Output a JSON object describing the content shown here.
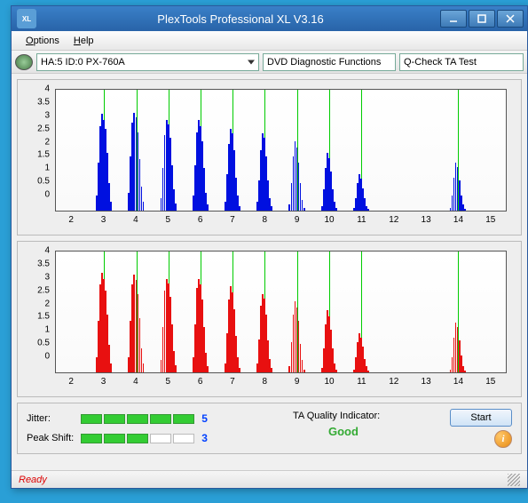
{
  "window": {
    "title": "PlexTools Professional XL V3.16",
    "icon_label": "XL"
  },
  "menu": {
    "options": "Options",
    "help": "Help"
  },
  "toolbar": {
    "drive": "HA:5 ID:0   PX-760A",
    "func": "DVD Diagnostic Functions",
    "test": "Q-Check TA Test"
  },
  "chart": {
    "ymax": 4,
    "ytick_step": 0.5,
    "yticks": [
      0,
      0.5,
      1,
      1.5,
      2,
      2.5,
      3,
      3.5,
      4
    ],
    "xmin": 1.5,
    "xmax": 15.5,
    "xticks": [
      2,
      3,
      4,
      5,
      6,
      7,
      8,
      9,
      10,
      11,
      12,
      13,
      14,
      15
    ],
    "vlines": [
      3,
      4,
      5,
      6,
      7,
      8,
      9,
      10,
      11,
      14
    ],
    "grid_color": "#e8e8e8",
    "vline_color": "#00cc00",
    "bar_width_rel": 0.056,
    "top": {
      "color": "#0010e0",
      "groups": [
        {
          "c": 3,
          "h": [
            0.5,
            1.6,
            2.8,
            3.2,
            3.0,
            2.7,
            1.9,
            0.9,
            0.3
          ]
        },
        {
          "c": 4,
          "h": [
            0.6,
            1.8,
            2.9,
            3.25,
            3.1,
            2.6,
            1.7,
            0.8,
            0.3
          ]
        },
        {
          "c": 5,
          "h": [
            0.4,
            1.4,
            2.5,
            3.0,
            2.85,
            2.4,
            1.5,
            0.7,
            0.25
          ]
        },
        {
          "c": 6,
          "h": [
            0.5,
            1.5,
            2.6,
            3.0,
            2.8,
            2.3,
            1.4,
            0.6,
            0.2
          ]
        },
        {
          "c": 7,
          "h": [
            0.3,
            1.2,
            2.2,
            2.7,
            2.55,
            2.0,
            1.1,
            0.5,
            0.15
          ]
        },
        {
          "c": 8,
          "h": [
            0.3,
            1.0,
            2.0,
            2.55,
            2.4,
            1.8,
            1.0,
            0.4,
            0.15
          ]
        },
        {
          "c": 9,
          "h": [
            0.2,
            0.9,
            1.8,
            2.3,
            2.1,
            1.6,
            0.9,
            0.35,
            0.1
          ]
        },
        {
          "c": 10,
          "h": [
            0.15,
            0.7,
            1.4,
            1.9,
            1.75,
            1.3,
            0.7,
            0.3,
            0.1
          ]
        },
        {
          "c": 11,
          "h": [
            0.1,
            0.4,
            0.9,
            1.2,
            1.05,
            0.75,
            0.4,
            0.15,
            0.05
          ]
        },
        {
          "c": 14,
          "h": [
            0.1,
            0.5,
            1.1,
            1.6,
            1.45,
            1.0,
            0.5,
            0.2,
            0.05
          ]
        }
      ]
    },
    "bottom": {
      "color": "#e81010",
      "groups": [
        {
          "c": 3,
          "h": [
            0.5,
            1.7,
            2.9,
            3.3,
            3.1,
            2.7,
            1.9,
            0.9,
            0.3
          ]
        },
        {
          "c": 4,
          "h": [
            0.5,
            1.7,
            2.9,
            3.25,
            3.05,
            2.6,
            1.8,
            0.8,
            0.3
          ]
        },
        {
          "c": 5,
          "h": [
            0.4,
            1.5,
            2.7,
            3.1,
            2.95,
            2.5,
            1.6,
            0.7,
            0.25
          ]
        },
        {
          "c": 6,
          "h": [
            0.5,
            1.6,
            2.8,
            3.1,
            2.9,
            2.4,
            1.5,
            0.65,
            0.2
          ]
        },
        {
          "c": 7,
          "h": [
            0.3,
            1.3,
            2.4,
            2.85,
            2.65,
            2.1,
            1.2,
            0.5,
            0.15
          ]
        },
        {
          "c": 8,
          "h": [
            0.3,
            1.1,
            2.2,
            2.6,
            2.45,
            1.9,
            1.05,
            0.45,
            0.15
          ]
        },
        {
          "c": 9,
          "h": [
            0.2,
            1.0,
            1.9,
            2.35,
            2.15,
            1.7,
            0.95,
            0.4,
            0.1
          ]
        },
        {
          "c": 10,
          "h": [
            0.15,
            0.8,
            1.6,
            2.05,
            1.85,
            1.4,
            0.8,
            0.3,
            0.1
          ]
        },
        {
          "c": 11,
          "h": [
            0.1,
            0.5,
            1.0,
            1.3,
            1.15,
            0.85,
            0.45,
            0.2,
            0.05
          ]
        },
        {
          "c": 14,
          "h": [
            0.1,
            0.5,
            1.15,
            1.65,
            1.5,
            1.05,
            0.55,
            0.2,
            0.05
          ]
        }
      ]
    }
  },
  "metrics": {
    "jitter_label": "Jitter:",
    "jitter_segments": 5,
    "jitter_filled": 5,
    "jitter_value": "5",
    "peak_label": "Peak Shift:",
    "peak_segments": 5,
    "peak_filled": 3,
    "peak_value": "3",
    "taq_label": "TA Quality Indicator:",
    "taq_value": "Good",
    "start": "Start"
  },
  "status": {
    "ready": "Ready"
  }
}
